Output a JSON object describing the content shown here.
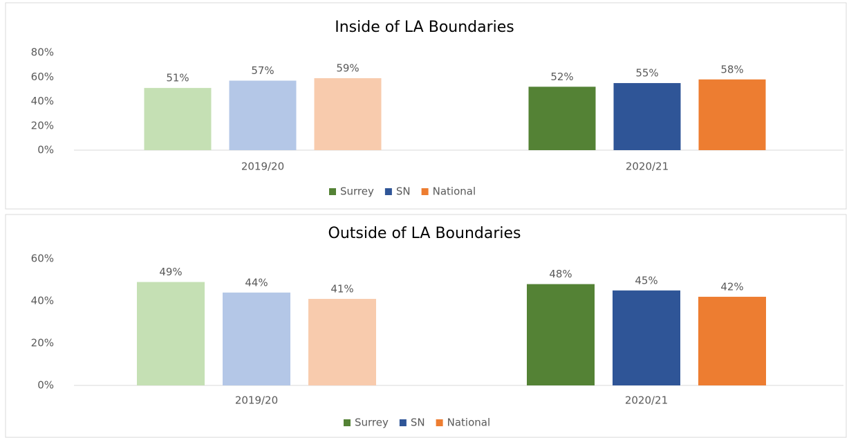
{
  "chart_data": [
    {
      "type": "bar",
      "title": "Inside of LA Boundaries",
      "categories": [
        "2019/20",
        "2020/21"
      ],
      "series": [
        {
          "name": "Surrey",
          "color": "#548235",
          "colors": [
            "#c5e0b4",
            "#548235"
          ],
          "values": [
            51,
            52
          ],
          "value_labels": [
            "51%",
            "52%"
          ]
        },
        {
          "name": "SN",
          "color": "#2f5597",
          "colors": [
            "#b4c7e7",
            "#2f5597"
          ],
          "values": [
            57,
            55
          ],
          "value_labels": [
            "57%",
            "55%"
          ]
        },
        {
          "name": "National",
          "color": "#ed7d31",
          "colors": [
            "#f8cbad",
            "#ed7d31"
          ],
          "values": [
            59,
            58
          ],
          "value_labels": [
            "59%",
            "58%"
          ]
        }
      ],
      "ylim": [
        0,
        80
      ],
      "yticks": [
        {
          "value": 0,
          "label": "0%"
        },
        {
          "value": 20,
          "label": "20%"
        },
        {
          "value": 40,
          "label": "40%"
        },
        {
          "value": 60,
          "label": "60%"
        },
        {
          "value": 80,
          "label": "80%"
        }
      ],
      "grid": false,
      "legend": "bottom"
    },
    {
      "type": "bar",
      "title": "Outside of LA Boundaries",
      "categories": [
        "2019/20",
        "2020/21"
      ],
      "series": [
        {
          "name": "Surrey",
          "color": "#548235",
          "colors": [
            "#c5e0b4",
            "#548235"
          ],
          "values": [
            49,
            48
          ],
          "value_labels": [
            "49%",
            "48%"
          ]
        },
        {
          "name": "SN",
          "color": "#2f5597",
          "colors": [
            "#b4c7e7",
            "#2f5597"
          ],
          "values": [
            44,
            45
          ],
          "value_labels": [
            "44%",
            "45%"
          ]
        },
        {
          "name": "National",
          "color": "#ed7d31",
          "colors": [
            "#f8cbad",
            "#ed7d31"
          ],
          "values": [
            41,
            42
          ],
          "value_labels": [
            "41%",
            "42%"
          ]
        }
      ],
      "ylim": [
        0,
        60
      ],
      "yticks": [
        {
          "value": 0,
          "label": "0%"
        },
        {
          "value": 20,
          "label": "20%"
        },
        {
          "value": 40,
          "label": "40%"
        },
        {
          "value": 60,
          "label": "60%"
        }
      ],
      "grid": false,
      "legend": "bottom"
    }
  ]
}
